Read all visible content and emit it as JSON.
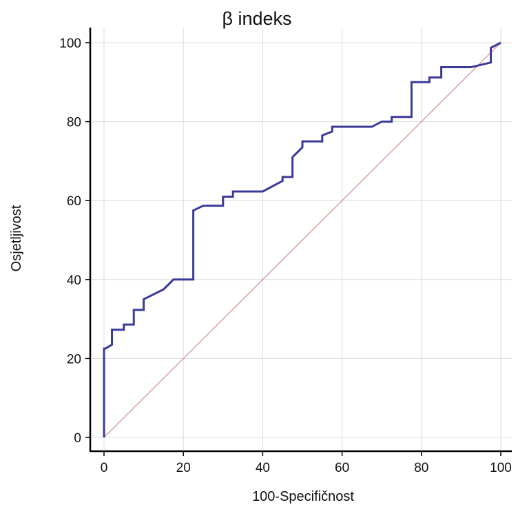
{
  "chart_data": {
    "type": "line",
    "title": "β indeks",
    "xlabel": "100-Specifičnost",
    "ylabel": "Osjetljivost",
    "xlim": [
      0,
      100
    ],
    "ylim": [
      0,
      100
    ],
    "xticks": [
      "0",
      "20",
      "40",
      "60",
      "80",
      "100"
    ],
    "yticks": [
      "0",
      "20",
      "40",
      "60",
      "80",
      "100"
    ],
    "grid": true,
    "colors": {
      "curve": "#3a3a9a",
      "reference": "#dca0a0",
      "grid": "#dcdcdc",
      "axis": "#000000"
    },
    "series": [
      {
        "x": [
          0,
          0,
          0.3,
          2,
          2,
          2.5,
          5,
          5,
          7.5,
          7.5,
          10,
          10,
          15,
          17.5,
          22.5,
          22.5,
          25,
          30,
          30,
          32.5,
          32.5,
          35,
          40,
          45,
          45,
          47.5,
          47.5,
          50,
          50,
          55,
          55,
          57.5,
          57.5,
          67.5,
          70,
          72.5,
          72.5,
          77.5,
          77.5,
          82,
          82,
          85,
          85,
          92.5,
          97.5,
          97.5,
          100
        ],
        "y": [
          0,
          22.5,
          22.5,
          23.5,
          27.3,
          27.3,
          27.3,
          28.6,
          28.6,
          32.3,
          32.3,
          35,
          37.5,
          40,
          40,
          57.5,
          58.7,
          58.7,
          61,
          61,
          62.3,
          62.3,
          62.3,
          65,
          66,
          66,
          71,
          73.5,
          75,
          75,
          76.5,
          77.5,
          78.7,
          78.7,
          80,
          80,
          81.2,
          81.2,
          90,
          90,
          91.2,
          91.2,
          93.8,
          93.8,
          95,
          98.7,
          100
        ]
      },
      {
        "x": [
          0,
          100
        ],
        "y": [
          0,
          100
        ]
      }
    ]
  }
}
